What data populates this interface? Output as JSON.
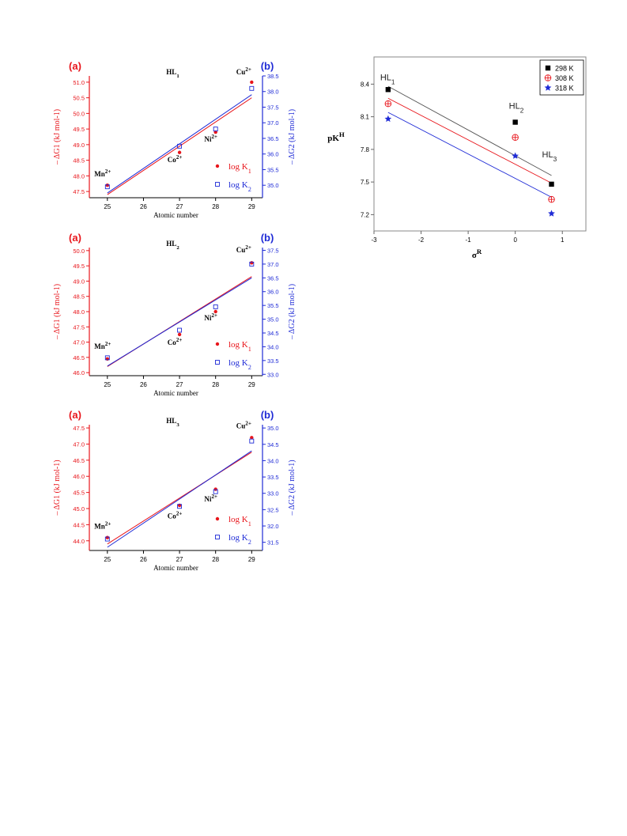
{
  "chart_data": [
    {
      "type": "scatter",
      "title": "HL1",
      "panel_left": "(a)",
      "panel_right": "(b)",
      "xlabel": "Atomic number",
      "ylabel_left": "– ΔG1 (kJ mol-1)",
      "ylabel_right": "– ΔG2 (kJ mol-1)",
      "xlim": [
        24.5,
        29.3
      ],
      "xticks": [
        "25",
        "26",
        "27",
        "28",
        "29"
      ],
      "ylim_left": [
        47.3,
        51.2
      ],
      "yticks_left": [
        "47.5",
        "48.0",
        "48.5",
        "49.0",
        "49.5",
        "50.0",
        "50.5",
        "51.0"
      ],
      "ylim_right": [
        34.6,
        38.5
      ],
      "yticks_right": [
        "35.0",
        "35.5",
        "36.0",
        "36.5",
        "37.0",
        "37.5",
        "38.0",
        "38.5"
      ],
      "ions": [
        "Mn",
        "Co",
        "Ni",
        "Cu"
      ],
      "ion_superscript": "2+",
      "legend": [
        "log K1",
        "log K2"
      ],
      "x": [
        25,
        27,
        28,
        29
      ],
      "series": [
        {
          "name": "log K1",
          "axis": "left",
          "color": "#e8151b",
          "marker": "filled-circle",
          "values": [
            47.7,
            48.75,
            49.4,
            51.0
          ],
          "fit": [
            47.4,
            50.5
          ]
        },
        {
          "name": "log K2",
          "axis": "right",
          "color": "#1f2bd6",
          "marker": "open-square",
          "values": [
            34.95,
            36.25,
            36.8,
            38.1
          ],
          "fit": [
            34.75,
            37.9
          ]
        }
      ]
    },
    {
      "type": "scatter",
      "title": "HL2",
      "panel_left": "(a)",
      "panel_right": "(b)",
      "xlabel": "Atomic number",
      "ylabel_left": "– ΔG1 (kJ mol-1)",
      "ylabel_right": "– ΔG2 (kJ mol-1)",
      "xlim": [
        24.5,
        29.3
      ],
      "xticks": [
        "25",
        "26",
        "27",
        "28",
        "29"
      ],
      "ylim_left": [
        45.9,
        50.1
      ],
      "yticks_left": [
        "46.0",
        "46.5",
        "47.0",
        "47.5",
        "48.0",
        "48.5",
        "49.0",
        "49.5",
        "50.0"
      ],
      "ylim_right": [
        32.95,
        37.6
      ],
      "yticks_right": [
        "33.0",
        "33.5",
        "34.0",
        "34.5",
        "35.0",
        "35.5",
        "36.0",
        "36.5",
        "37.0",
        "37.5"
      ],
      "ions": [
        "Mn",
        "Co",
        "Ni",
        "Cu"
      ],
      "ion_superscript": "2+",
      "legend": [
        "log K1",
        "log K2"
      ],
      "x": [
        25,
        27,
        28,
        29
      ],
      "series": [
        {
          "name": "log K1",
          "axis": "left",
          "color": "#e8151b",
          "marker": "filled-circle",
          "values": [
            46.45,
            47.25,
            48.0,
            49.6
          ],
          "fit": [
            46.2,
            49.15
          ]
        },
        {
          "name": "log K2",
          "axis": "right",
          "color": "#1f2bd6",
          "marker": "open-square",
          "values": [
            33.6,
            34.6,
            35.45,
            37.0
          ],
          "fit": [
            33.3,
            36.5
          ]
        }
      ]
    },
    {
      "type": "scatter",
      "title": "HL3",
      "panel_left": "(a)",
      "panel_right": "(b)",
      "xlabel": "Atomic number",
      "ylabel_left": "– ΔG1 (kJ mol-1)",
      "ylabel_right": "– ΔG2 (kJ mol-1)",
      "xlim": [
        24.5,
        29.3
      ],
      "xticks": [
        "25",
        "26",
        "27",
        "28",
        "29"
      ],
      "ylim_left": [
        43.7,
        47.6
      ],
      "yticks_left": [
        "44.0",
        "44.5",
        "45.0",
        "45.5",
        "46.0",
        "46.5",
        "47.0",
        "47.5"
      ],
      "ylim_right": [
        31.25,
        35.1
      ],
      "yticks_right": [
        "31.5",
        "32.0",
        "32.5",
        "33.0",
        "33.5",
        "34.0",
        "34.5",
        "35.0"
      ],
      "ions": [
        "Mn",
        "Co",
        "Ni",
        "Cu"
      ],
      "ion_superscript": "2+",
      "legend": [
        "log K1",
        "log K2"
      ],
      "x": [
        25,
        27,
        28,
        29
      ],
      "series": [
        {
          "name": "log K1",
          "axis": "left",
          "color": "#e8151b",
          "marker": "filled-circle",
          "values": [
            44.1,
            45.1,
            45.6,
            47.2
          ],
          "fit": [
            43.9,
            46.75
          ]
        },
        {
          "name": "log K2",
          "axis": "right",
          "color": "#1f2bd6",
          "marker": "open-square",
          "values": [
            31.6,
            32.6,
            33.05,
            34.6
          ],
          "fit": [
            31.35,
            34.3
          ]
        }
      ]
    },
    {
      "type": "scatter",
      "title": "",
      "xlabel": "σR",
      "ylabel": "pKH",
      "xlim": [
        -3,
        1.5
      ],
      "xticks": [
        "-3",
        "-2",
        "-1",
        "0",
        "1"
      ],
      "ylim": [
        7.05,
        8.65
      ],
      "yticks": [
        "7.2",
        "7.5",
        "7.8",
        "8.1",
        "8.4"
      ],
      "point_labels": [
        "HL1",
        "HL2",
        "HL3"
      ],
      "x": [
        -2.7,
        0,
        0.77
      ],
      "series": [
        {
          "name": "298 K",
          "color": "#000000",
          "marker": "filled-square",
          "values": [
            8.35,
            8.05,
            7.48
          ],
          "fit": [
            8.38,
            7.56
          ]
        },
        {
          "name": "308 K",
          "color": "#e8151b",
          "marker": "circle-plus",
          "values": [
            8.22,
            7.91,
            7.34
          ],
          "fit": [
            8.27,
            7.49
          ]
        },
        {
          "name": "318 K",
          "color": "#1f2bd6",
          "marker": "star",
          "values": [
            8.08,
            7.74,
            7.21
          ],
          "fit": [
            8.14,
            7.36
          ]
        }
      ],
      "legend": [
        "298 K",
        "308 K",
        "318 K"
      ],
      "legend_position": "top-right"
    }
  ]
}
